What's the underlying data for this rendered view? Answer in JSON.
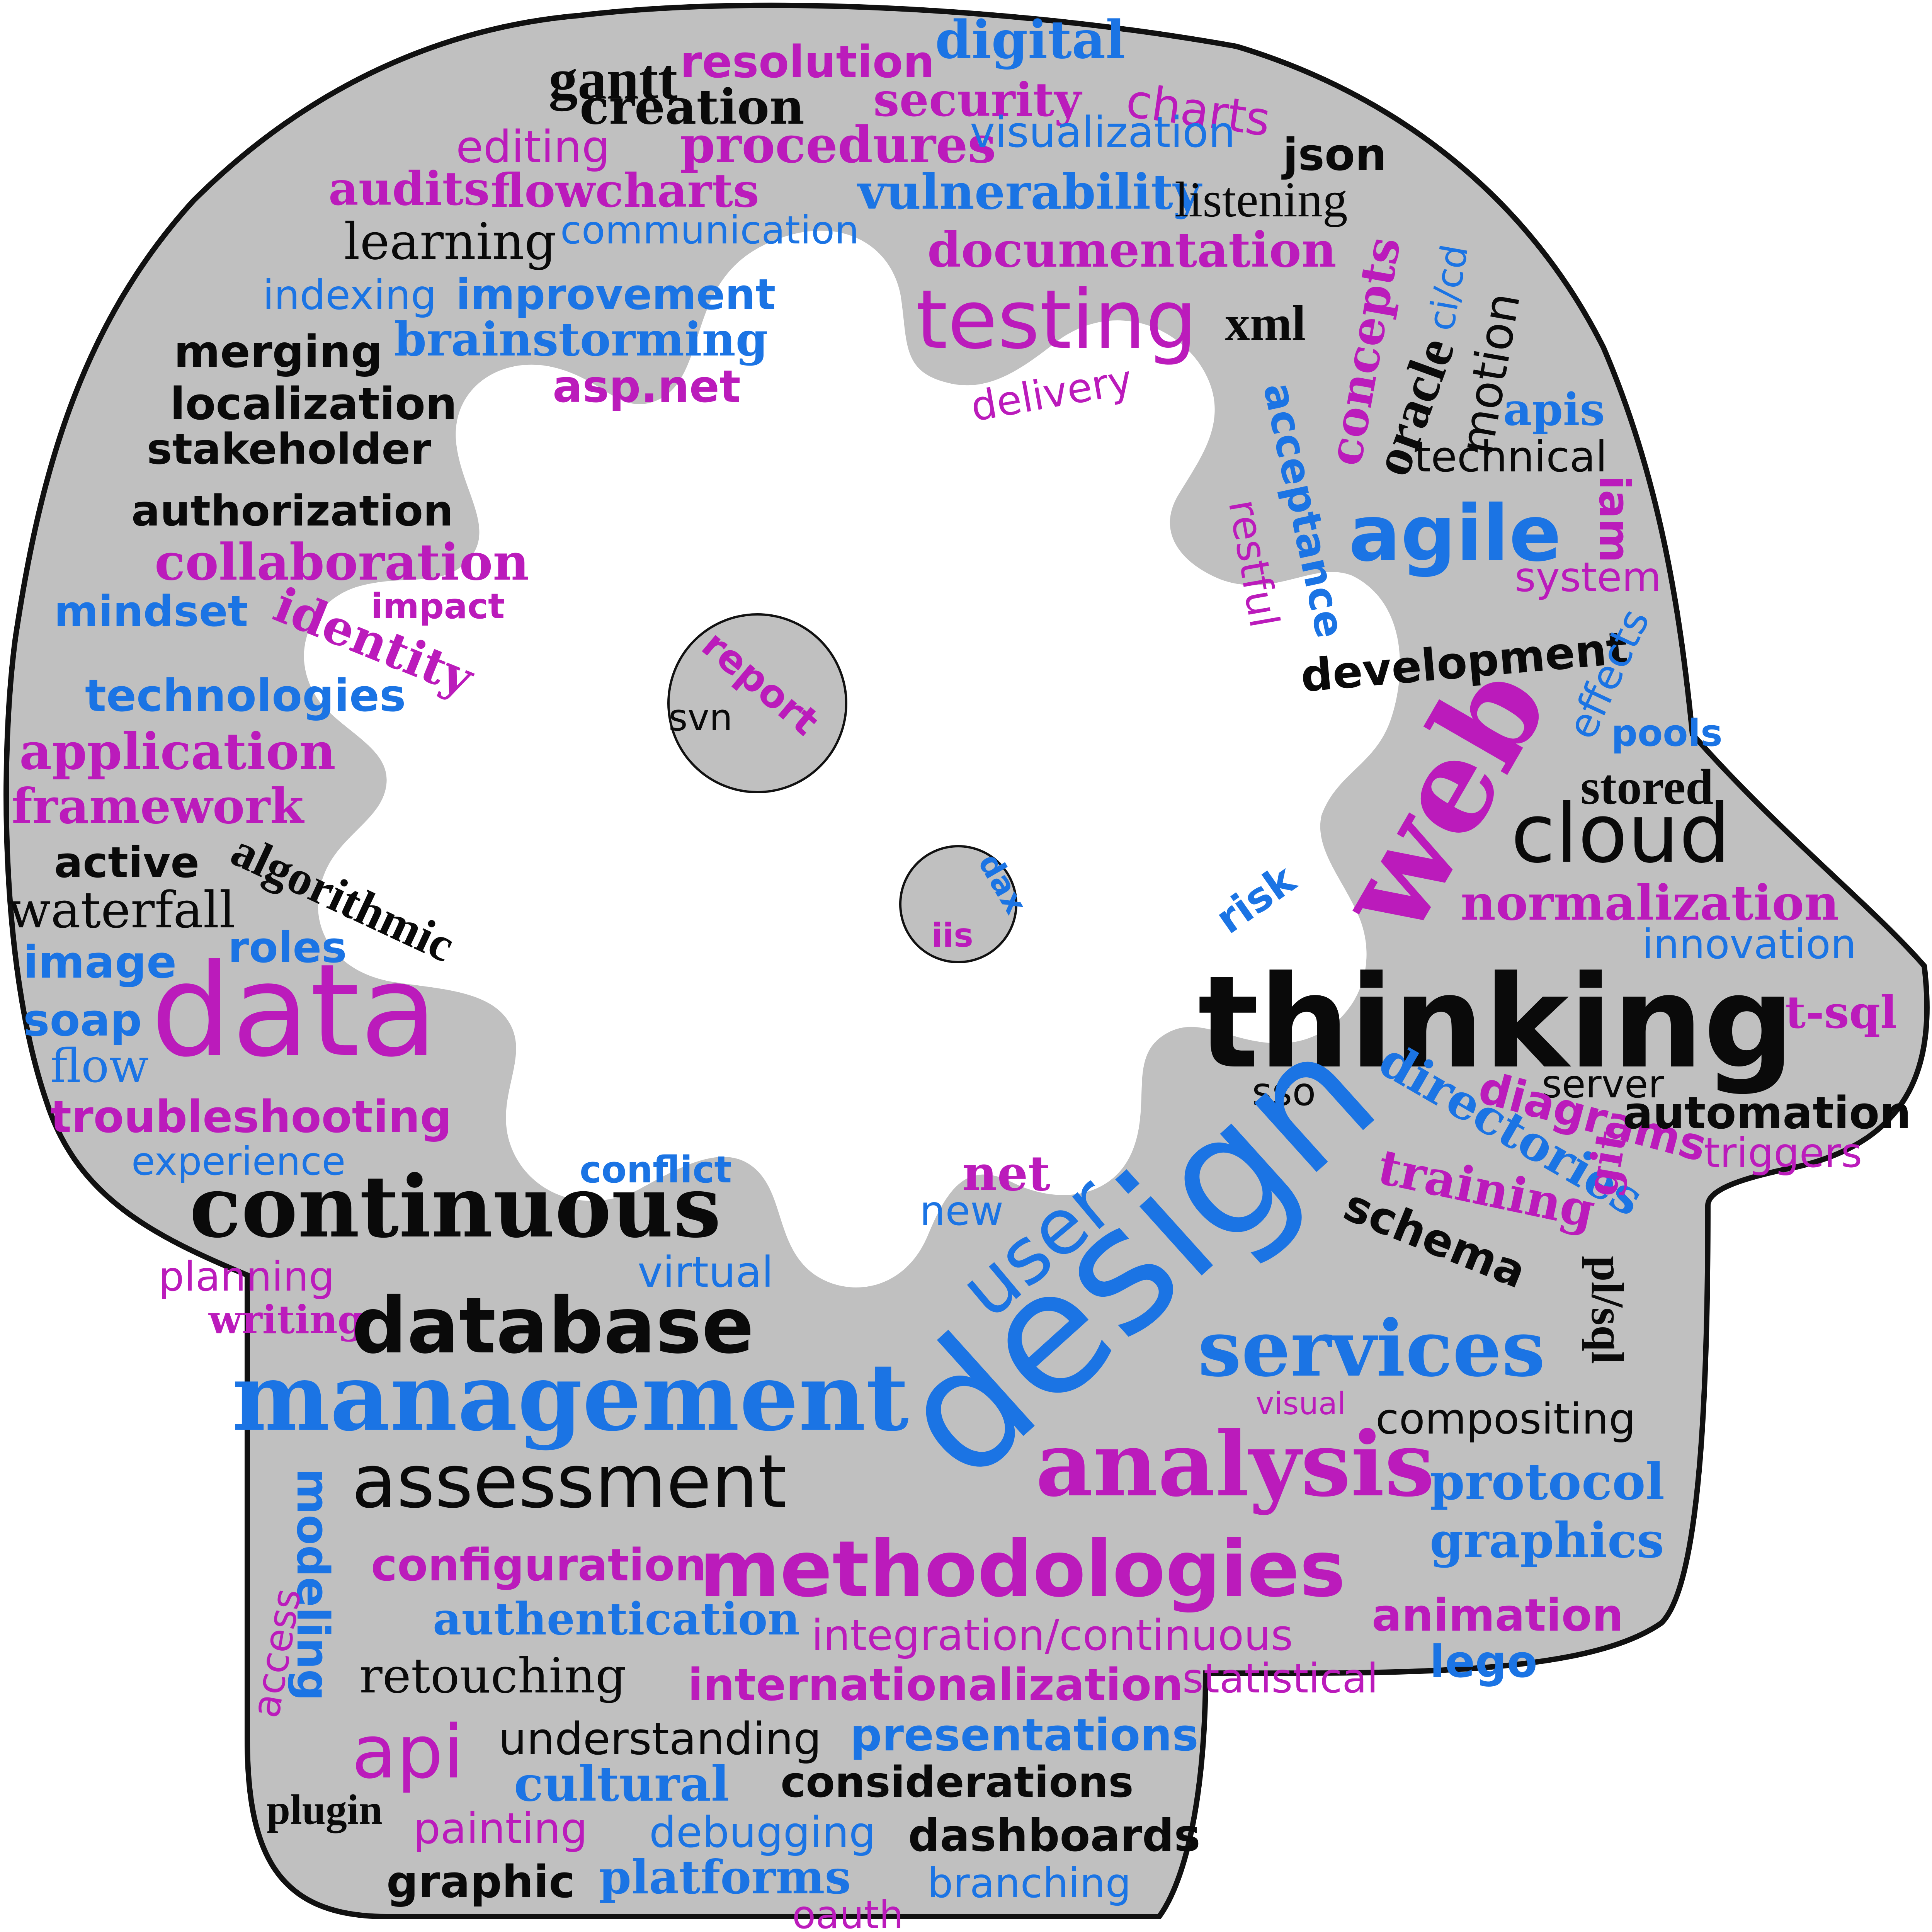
{
  "colors": {
    "head_fill": "#c0c0c0",
    "head_stroke": "#111111",
    "gear_fill": "#ffffff",
    "magenta": "#bb1bbb",
    "blue": "#1b74e4",
    "black": "#0a0a0a"
  },
  "words": [
    {
      "text": "gantt",
      "color": "black"
    },
    {
      "text": "resolution",
      "color": "magenta"
    },
    {
      "text": "digital",
      "color": "blue"
    },
    {
      "text": "creation",
      "color": "black"
    },
    {
      "text": "security",
      "color": "magenta"
    },
    {
      "text": "charts",
      "color": "magenta"
    },
    {
      "text": "editing",
      "color": "magenta"
    },
    {
      "text": "procedures",
      "color": "magenta"
    },
    {
      "text": "visualization",
      "color": "blue"
    },
    {
      "text": "json",
      "color": "black"
    },
    {
      "text": "audits",
      "color": "magenta"
    },
    {
      "text": "flowcharts",
      "color": "magenta"
    },
    {
      "text": "vulnerability",
      "color": "blue"
    },
    {
      "text": "listening",
      "color": "black"
    },
    {
      "text": "learning",
      "color": "black"
    },
    {
      "text": "communication",
      "color": "blue"
    },
    {
      "text": "documentation",
      "color": "magenta"
    },
    {
      "text": "ci/cd",
      "color": "blue"
    },
    {
      "text": "indexing",
      "color": "blue"
    },
    {
      "text": "improvement",
      "color": "blue"
    },
    {
      "text": "testing",
      "color": "magenta"
    },
    {
      "text": "xml",
      "color": "black"
    },
    {
      "text": "concepts",
      "color": "magenta"
    },
    {
      "text": "motion",
      "color": "black"
    },
    {
      "text": "merging",
      "color": "black"
    },
    {
      "text": "brainstorming",
      "color": "blue"
    },
    {
      "text": "oracle",
      "color": "black"
    },
    {
      "text": "asp.net",
      "color": "magenta"
    },
    {
      "text": "delivery",
      "color": "magenta"
    },
    {
      "text": "apis",
      "color": "blue"
    },
    {
      "text": "localization",
      "color": "black"
    },
    {
      "text": "acceptance",
      "color": "blue"
    },
    {
      "text": "technical",
      "color": "black"
    },
    {
      "text": "stakeholder",
      "color": "black"
    },
    {
      "text": "authorization",
      "color": "black"
    },
    {
      "text": "restful",
      "color": "magenta"
    },
    {
      "text": "agile",
      "color": "blue"
    },
    {
      "text": "iam",
      "color": "magenta"
    },
    {
      "text": "collaboration",
      "color": "magenta"
    },
    {
      "text": "system",
      "color": "magenta"
    },
    {
      "text": "mindset",
      "color": "blue"
    },
    {
      "text": "impact",
      "color": "magenta"
    },
    {
      "text": "identity",
      "color": "magenta"
    },
    {
      "text": "report",
      "color": "magenta"
    },
    {
      "text": "development",
      "color": "black"
    },
    {
      "text": "effects",
      "color": "blue"
    },
    {
      "text": "svn",
      "color": "black"
    },
    {
      "text": "technologies",
      "color": "blue"
    },
    {
      "text": "application",
      "color": "magenta"
    },
    {
      "text": "pools",
      "color": "blue"
    },
    {
      "text": "web",
      "color": "magenta"
    },
    {
      "text": "stored",
      "color": "black"
    },
    {
      "text": "framework",
      "color": "magenta"
    },
    {
      "text": "cloud",
      "color": "black"
    },
    {
      "text": "active",
      "color": "black"
    },
    {
      "text": "algorithmic",
      "color": "black"
    },
    {
      "text": "dax",
      "color": "blue"
    },
    {
      "text": "risk",
      "color": "blue"
    },
    {
      "text": "normalization",
      "color": "magenta"
    },
    {
      "text": "waterfall",
      "color": "black"
    },
    {
      "text": "iis",
      "color": "magenta"
    },
    {
      "text": "innovation",
      "color": "blue"
    },
    {
      "text": "roles",
      "color": "blue"
    },
    {
      "text": "image",
      "color": "blue"
    },
    {
      "text": "data",
      "color": "magenta"
    },
    {
      "text": "thinking",
      "color": "black"
    },
    {
      "text": "soap",
      "color": "blue"
    },
    {
      "text": "t-sql",
      "color": "magenta"
    },
    {
      "text": "flow",
      "color": "blue"
    },
    {
      "text": "sso",
      "color": "black"
    },
    {
      "text": "server",
      "color": "black"
    },
    {
      "text": "directories",
      "color": "blue"
    },
    {
      "text": "diagrams",
      "color": "magenta"
    },
    {
      "text": "automation",
      "color": "black"
    },
    {
      "text": "troubleshooting",
      "color": "magenta"
    },
    {
      "text": "experience",
      "color": "blue"
    },
    {
      "text": "conflict",
      "color": "blue"
    },
    {
      "text": "net",
      "color": "magenta"
    },
    {
      "text": "triggers",
      "color": "magenta"
    },
    {
      "text": "continuous",
      "color": "black"
    },
    {
      "text": "new",
      "color": "blue"
    },
    {
      "text": "user",
      "color": "blue"
    },
    {
      "text": "training",
      "color": "magenta"
    },
    {
      "text": "git",
      "color": "magenta"
    },
    {
      "text": "design",
      "color": "blue"
    },
    {
      "text": "schema",
      "color": "black"
    },
    {
      "text": "planning",
      "color": "magenta"
    },
    {
      "text": "virtual",
      "color": "blue"
    },
    {
      "text": "pl/sql",
      "color": "black"
    },
    {
      "text": "writing",
      "color": "magenta"
    },
    {
      "text": "database",
      "color": "black"
    },
    {
      "text": "services",
      "color": "blue"
    },
    {
      "text": "management",
      "color": "blue"
    },
    {
      "text": "visual",
      "color": "magenta"
    },
    {
      "text": "compositing",
      "color": "black"
    },
    {
      "text": "analysis",
      "color": "magenta"
    },
    {
      "text": "assessment",
      "color": "black"
    },
    {
      "text": "protocol",
      "color": "blue"
    },
    {
      "text": "modeling",
      "color": "blue"
    },
    {
      "text": "configuration",
      "color": "magenta"
    },
    {
      "text": "methodologies",
      "color": "magenta"
    },
    {
      "text": "graphics",
      "color": "blue"
    },
    {
      "text": "access",
      "color": "magenta"
    },
    {
      "text": "authentication",
      "color": "blue"
    },
    {
      "text": "animation",
      "color": "magenta"
    },
    {
      "text": "integration/continuous",
      "color": "magenta"
    },
    {
      "text": "retouching",
      "color": "black"
    },
    {
      "text": "lego",
      "color": "blue"
    },
    {
      "text": "internationalization",
      "color": "magenta"
    },
    {
      "text": "statistical",
      "color": "magenta"
    },
    {
      "text": "api",
      "color": "magenta"
    },
    {
      "text": "understanding",
      "color": "black"
    },
    {
      "text": "presentations",
      "color": "blue"
    },
    {
      "text": "cultural",
      "color": "blue"
    },
    {
      "text": "considerations",
      "color": "black"
    },
    {
      "text": "plugin",
      "color": "black"
    },
    {
      "text": "painting",
      "color": "magenta"
    },
    {
      "text": "debugging",
      "color": "blue"
    },
    {
      "text": "dashboards",
      "color": "black"
    },
    {
      "text": "graphic",
      "color": "black"
    },
    {
      "text": "platforms",
      "color": "blue"
    },
    {
      "text": "branching",
      "color": "blue"
    },
    {
      "text": "oauth",
      "color": "magenta"
    }
  ]
}
